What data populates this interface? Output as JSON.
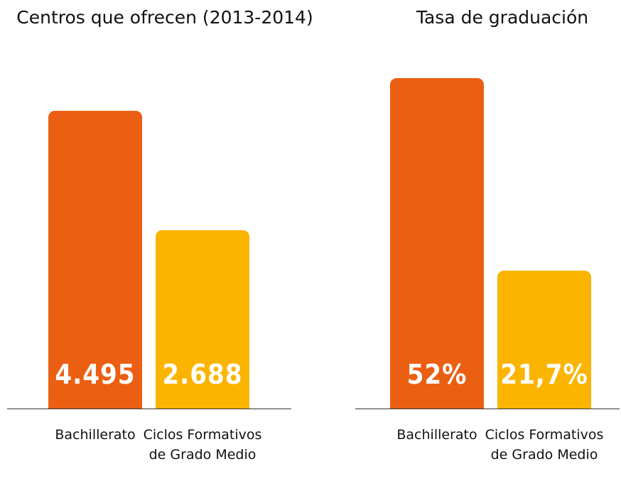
{
  "chart_data": [
    {
      "type": "bar",
      "title": "Centros que ofrecen (2013-2014)",
      "categories": [
        "Bachillerato",
        "Ciclos Formativos de Grado Medio"
      ],
      "values": [
        4495,
        2688
      ],
      "value_labels": [
        "4.495",
        "2.688"
      ],
      "colors": [
        "#eb5f13",
        "#fbb400"
      ]
    },
    {
      "type": "bar",
      "title": "Tasa de graduación",
      "categories": [
        "Bachillerato",
        "Ciclos Formativos de Grado Medio"
      ],
      "values": [
        52,
        21.7
      ],
      "value_labels": [
        "52%",
        "21,7%"
      ],
      "colors": [
        "#eb5f13",
        "#fbb400"
      ]
    }
  ]
}
